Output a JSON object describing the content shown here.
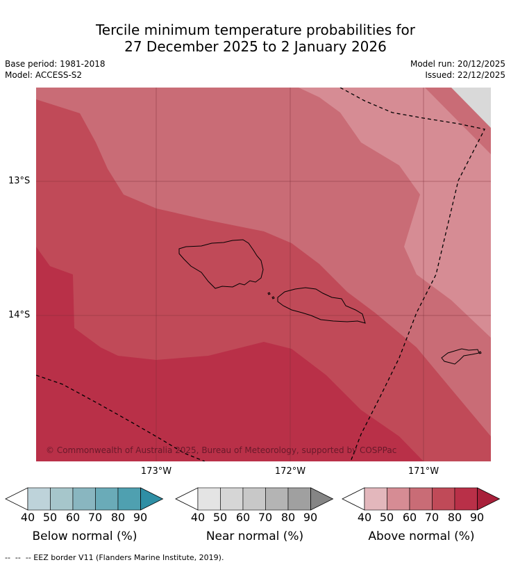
{
  "header": {
    "title_line1": "Tercile minimum temperature probabilities for",
    "title_line2": "27 December 2025 to 2 January 2026",
    "base_period": "Base period: 1981-2018",
    "model": "Model: ACCESS-S2",
    "model_run": "Model run: 20/12/2025",
    "issued": "Issued: 22/12/2025"
  },
  "map": {
    "lat_labels": [
      "13°S",
      "14°S"
    ],
    "lon_labels": [
      "173°W",
      "172°W",
      "171°W"
    ],
    "copyright": "© Commonwealth of Australia 2025, Bureau of Meteorology, supported by COSPPac",
    "colors": {
      "above_50": "#d68c94",
      "above_60": "#c96c76",
      "above_70": "#c04a58",
      "above_80": "#b93048",
      "no_data": "#d9d9d9"
    }
  },
  "colorbars": [
    {
      "title": "Below normal (%)",
      "ticks": [
        "40",
        "50",
        "60",
        "70",
        "80",
        "90"
      ],
      "colors": [
        "#bed3da",
        "#a6c6cb",
        "#89b6c0",
        "#6aabb8",
        "#4fa0b0",
        "#2f8fa5"
      ]
    },
    {
      "title": "Near normal (%)",
      "ticks": [
        "40",
        "50",
        "60",
        "70",
        "80",
        "90"
      ],
      "colors": [
        "#e4e4e4",
        "#d6d6d6",
        "#c8c8c8",
        "#b4b4b4",
        "#a0a0a0",
        "#858585"
      ]
    },
    {
      "title": "Above normal (%)",
      "ticks": [
        "40",
        "50",
        "60",
        "70",
        "80",
        "90"
      ],
      "colors": [
        "#e3b7bc",
        "#d68c94",
        "#c96c76",
        "#c04a58",
        "#b93048",
        "#a8203a"
      ]
    }
  ],
  "footer": {
    "legend_text": "--  --  -- EEZ border V11 (Flanders Marine Institute, 2019)."
  }
}
